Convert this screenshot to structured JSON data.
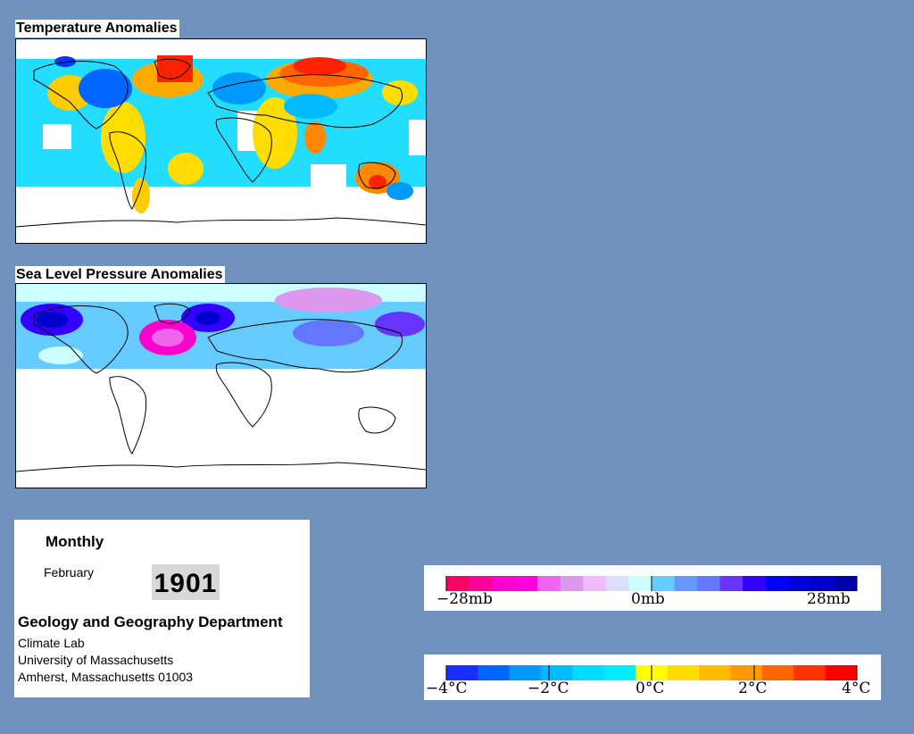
{
  "temperature_panel": {
    "title": "Temperature Anomalies"
  },
  "pressure_panel": {
    "title": "Sea Level Pressure Anomalies"
  },
  "info": {
    "frequency": "Monthly",
    "month": "February",
    "year": "1901",
    "department": "Geology and Geography Department",
    "lab": "Climate Lab",
    "university": "University of Massachusetts",
    "address": "Amherst, Massachusetts 01003"
  },
  "pressure_legend": {
    "labels": [
      "−28mb",
      "0mb",
      "28mb"
    ],
    "colors": [
      "#ff0066",
      "#ff0099",
      "#ff00cc",
      "#ff00dd",
      "#ee66ee",
      "#dd99ee",
      "#eebbff",
      "#ddddff",
      "#ccffff",
      "#66ccff",
      "#6699ff",
      "#6677ff",
      "#6633ff",
      "#3300ff",
      "#0000ff",
      "#0000dd",
      "#0000cc",
      "#0000aa"
    ]
  },
  "temperature_legend": {
    "labels": [
      "−4°C",
      "−2°C",
      "0°C",
      "2°C",
      "4°C"
    ],
    "colors": [
      "#1a2fff",
      "#0066ff",
      "#0099ff",
      "#00bbff",
      "#00ddff",
      "#00eeff",
      "#ffff00",
      "#ffdd00",
      "#ffbb00",
      "#ff9900",
      "#ff6600",
      "#ff3300",
      "#ff0000"
    ]
  }
}
